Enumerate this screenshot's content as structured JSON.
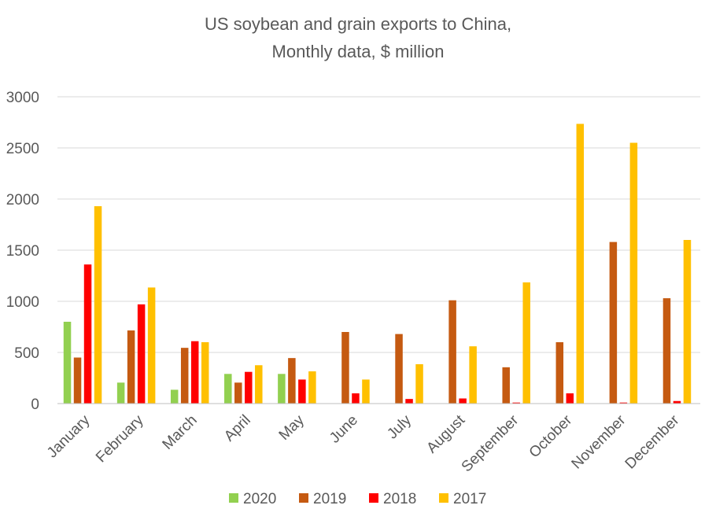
{
  "chart_data": {
    "type": "bar",
    "title_lines": [
      "US soybean and grain exports to China,",
      "Monthly data, $ million"
    ],
    "categories": [
      "January",
      "February",
      "March",
      "April",
      "May",
      "June",
      "July",
      "August",
      "September",
      "October",
      "November",
      "December"
    ],
    "ylim": [
      0,
      3000
    ],
    "yticks": [
      0,
      500,
      1000,
      1500,
      2000,
      2500,
      3000
    ],
    "grid": true,
    "legend_position": "bottom",
    "series": [
      {
        "name": "2020",
        "color": "#92d050",
        "values": [
          800,
          205,
          135,
          290,
          290,
          null,
          null,
          null,
          null,
          null,
          null,
          null
        ]
      },
      {
        "name": "2019",
        "color": "#c55a11",
        "values": [
          450,
          715,
          545,
          205,
          445,
          700,
          680,
          1010,
          355,
          600,
          1580,
          1030
        ]
      },
      {
        "name": "2018",
        "color": "#ff0000",
        "values": [
          1360,
          970,
          610,
          310,
          235,
          100,
          45,
          50,
          10,
          100,
          10,
          25
        ]
      },
      {
        "name": "2017",
        "color": "#ffc000",
        "values": [
          1930,
          1135,
          600,
          375,
          315,
          235,
          385,
          560,
          1185,
          2735,
          2550,
          1600
        ]
      }
    ]
  }
}
